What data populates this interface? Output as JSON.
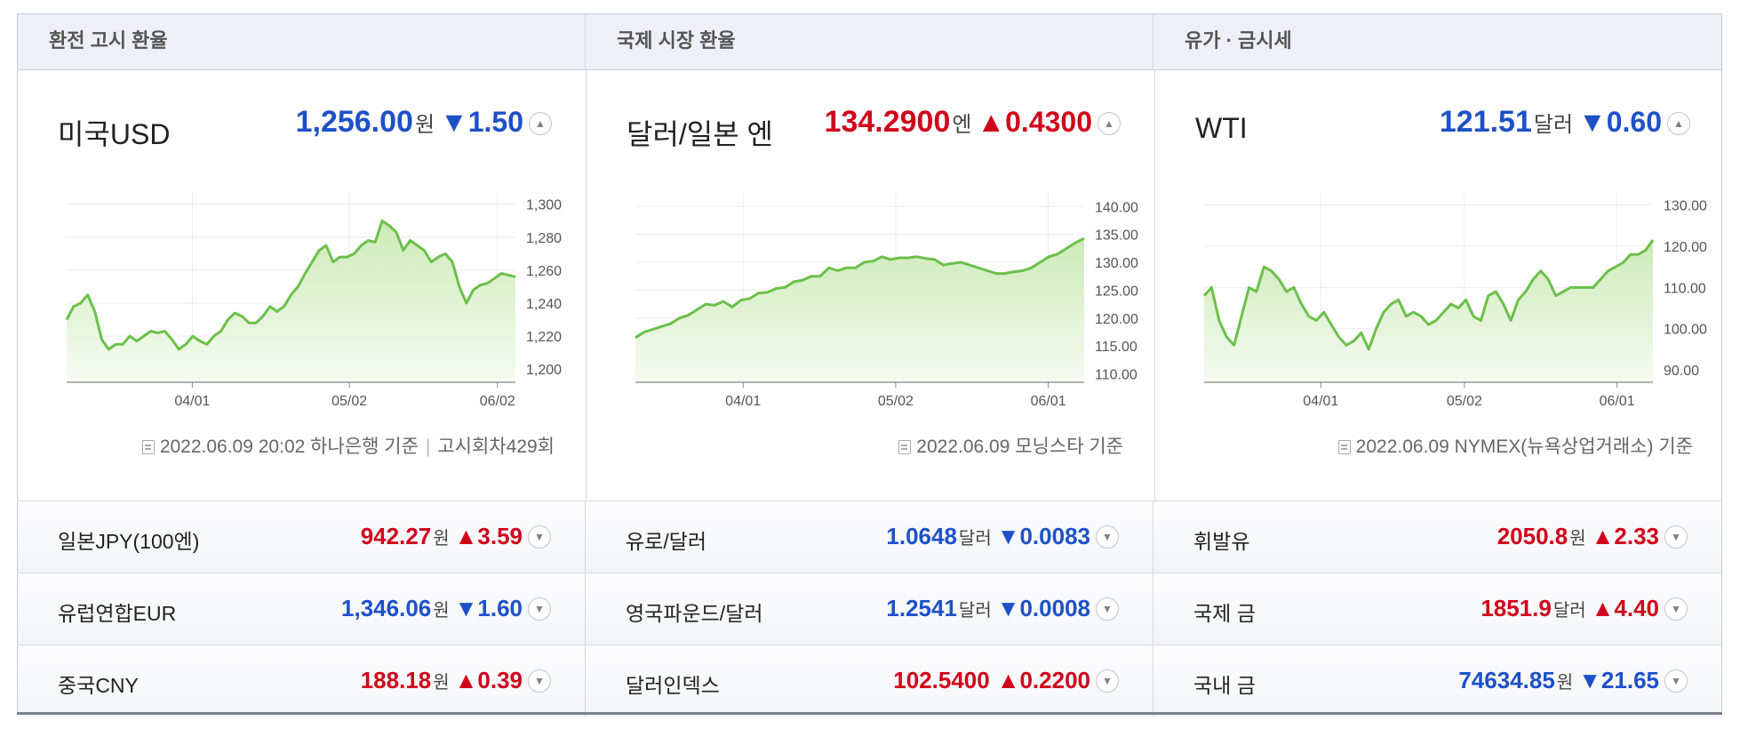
{
  "headers": [
    "환전 고시 환율",
    "국제 시장 환율",
    "유가 · 금시세"
  ],
  "panels": [
    {
      "title": "미국USD",
      "value": "1,256.00",
      "unit": "원",
      "change": "▼1.50",
      "direction": "down",
      "toggle": "▲",
      "footer": "2022.06.09 20:02 하나은행 기준",
      "footer2": "고시회차429회"
    },
    {
      "title": "달러/일본 엔",
      "value": "134.2900",
      "unit": "엔",
      "change": "▲0.4300",
      "direction": "up",
      "toggle": "▲",
      "footer": "2022.06.09 모닝스타 기준",
      "footer2": ""
    },
    {
      "title": "WTI",
      "value": "121.51",
      "unit": "달러",
      "change": "▼0.60",
      "direction": "down",
      "toggle": "▲",
      "footer": "2022.06.09 NYMEX(뉴욕상업거래소) 기준",
      "footer2": ""
    }
  ],
  "rows": [
    [
      {
        "name": "일본JPY(100엔)",
        "value": "942.27",
        "unit": "원",
        "change": "▲3.59",
        "direction": "up",
        "toggle": "▼"
      },
      {
        "name": "유로/달러",
        "value": "1.0648",
        "unit": "달러",
        "change": "▼0.0083",
        "direction": "down",
        "toggle": "▼"
      },
      {
        "name": "휘발유",
        "value": "2050.8",
        "unit": "원",
        "change": "▲2.33",
        "direction": "up",
        "toggle": "▼"
      }
    ],
    [
      {
        "name": "유럽연합EUR",
        "value": "1,346.06",
        "unit": "원",
        "change": "▼1.60",
        "direction": "down",
        "toggle": "▼"
      },
      {
        "name": "영국파운드/달러",
        "value": "1.2541",
        "unit": "달러",
        "change": "▼0.0008",
        "direction": "down",
        "toggle": "▼"
      },
      {
        "name": "국제 금",
        "value": "1851.9",
        "unit": "달러",
        "change": "▲4.40",
        "direction": "up",
        "toggle": "▼"
      }
    ],
    [
      {
        "name": "중국CNY",
        "value": "188.18",
        "unit": "원",
        "change": "▲0.39",
        "direction": "up",
        "toggle": "▼"
      },
      {
        "name": "달러인덱스",
        "value": "102.5400",
        "unit": "",
        "change": "▲0.2200",
        "direction": "up",
        "toggle": "▼"
      },
      {
        "name": "국내 금",
        "value": "74634.85",
        "unit": "원",
        "change": "▼21.65",
        "direction": "down",
        "toggle": "▼"
      }
    ]
  ],
  "colors": {
    "up": "#d0021b",
    "down": "#1e50c8",
    "line": "#6cc04a",
    "fill_top": "#cdeab8",
    "fill_bottom": "#f6fbf2"
  },
  "chart_data": [
    {
      "type": "area",
      "title": "",
      "x_ticks": [
        "04/01",
        "05/02",
        "06/02"
      ],
      "x_tick_pos": [
        0.28,
        0.63,
        0.96
      ],
      "yticks": [
        1200,
        1220,
        1240,
        1260,
        1280,
        1300
      ],
      "ytick_labels": [
        "1,200",
        "1,220",
        "1,240",
        "1,260",
        "1,280",
        "1,300"
      ],
      "ylim": [
        1192,
        1302
      ],
      "grid": true,
      "values": [
        1230,
        1238,
        1240,
        1245,
        1235,
        1218,
        1212,
        1215,
        1215,
        1220,
        1217,
        1220,
        1223,
        1222,
        1223,
        1218,
        1212,
        1215,
        1220,
        1217,
        1215,
        1220,
        1223,
        1230,
        1234,
        1232,
        1228,
        1228,
        1232,
        1238,
        1235,
        1238,
        1245,
        1250,
        1258,
        1265,
        1272,
        1275,
        1265,
        1268,
        1268,
        1270,
        1275,
        1278,
        1277,
        1290,
        1287,
        1283,
        1272,
        1278,
        1275,
        1272,
        1265,
        1268,
        1270,
        1265,
        1250,
        1240,
        1248,
        1251,
        1252,
        1255,
        1258,
        1257,
        1256
      ]
    },
    {
      "type": "area",
      "title": "",
      "x_ticks": [
        "04/01",
        "05/02",
        "06/01"
      ],
      "x_tick_pos": [
        0.24,
        0.58,
        0.92
      ],
      "yticks": [
        110,
        115,
        120,
        125,
        130,
        135,
        140
      ],
      "ytick_labels": [
        "110.00",
        "115.00",
        "120.00",
        "125.00",
        "130.00",
        "135.00",
        "140.00"
      ],
      "ylim": [
        108.5,
        141
      ],
      "grid": true,
      "values": [
        116.5,
        117.5,
        118,
        118.5,
        119,
        120,
        120.5,
        121.5,
        122.5,
        122.3,
        123,
        122,
        123.2,
        123.5,
        124.5,
        124.6,
        125.3,
        125.5,
        126.5,
        126.8,
        127.5,
        127.5,
        129,
        128.5,
        129,
        129,
        130,
        130.2,
        131,
        130.5,
        130.8,
        130.8,
        131,
        130.7,
        130.5,
        129.5,
        129.8,
        130,
        129.5,
        129,
        128.5,
        128,
        128,
        128.3,
        128.5,
        129,
        130,
        131,
        131.5,
        132.5,
        133.5,
        134.29
      ]
    },
    {
      "type": "area",
      "title": "",
      "x_ticks": [
        "04/01",
        "05/02",
        "06/01"
      ],
      "x_tick_pos": [
        0.26,
        0.58,
        0.92
      ],
      "yticks": [
        90,
        100,
        110,
        120,
        130
      ],
      "ytick_labels": [
        "90.00",
        "100.00",
        "110.00",
        "120.00",
        "130.00"
      ],
      "ylim": [
        87,
        131
      ],
      "grid": true,
      "values": [
        108,
        110,
        102,
        98,
        96,
        103,
        110,
        109,
        115,
        114,
        112,
        109,
        110,
        106,
        103,
        102,
        104,
        101,
        98,
        96,
        97,
        99,
        95,
        100,
        104,
        106,
        107,
        103,
        104,
        103,
        101,
        102,
        104,
        106,
        105,
        107,
        103,
        102,
        108,
        109,
        106,
        102,
        107,
        109,
        112,
        114,
        112,
        108,
        109,
        110,
        110,
        110,
        110,
        112,
        114,
        115,
        116,
        118,
        118,
        119,
        121.5
      ]
    }
  ]
}
